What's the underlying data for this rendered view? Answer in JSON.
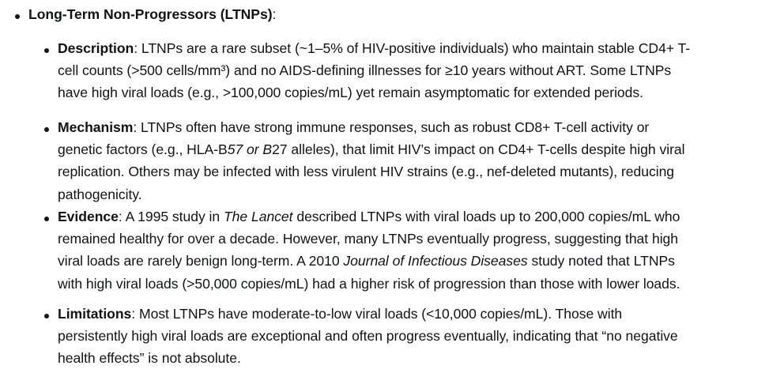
{
  "outer": {
    "title": "Long-Term Non-Progressors (LTNPs)",
    "title_suffix": ":"
  },
  "items": [
    {
      "label": "Description",
      "lines": [
        [
          {
            "t": ": LTNPs are a rare subset (~1–5% of HIV-positive individuals) who maintain stable CD4+ T-"
          }
        ],
        [
          {
            "t": "cell counts (>500 cells/mm³) and no AIDS-defining illnesses for ≥10 years without ART. Some LTNPs"
          }
        ],
        [
          {
            "t": "have high viral loads (e.g., >100,000 copies/mL) yet remain asymptomatic for extended periods."
          }
        ]
      ]
    },
    {
      "label": "Mechanism",
      "lines": [
        [
          {
            "t": ": LTNPs often have strong immune responses, such as robust CD8+ T-cell activity or"
          }
        ],
        [
          {
            "t": "genetic factors (e.g., HLA-B"
          },
          {
            "t": "57 or B",
            "i": true
          },
          {
            "t": "27 alleles), that limit HIV’s impact on CD4+ T-cells despite high viral"
          }
        ],
        [
          {
            "t": "replication. Others may be infected with less virulent HIV strains (e.g., nef-deleted mutants), reducing"
          }
        ],
        [
          {
            "t": "pathogenicity."
          }
        ]
      ]
    },
    {
      "label": "Evidence",
      "lines": [
        [
          {
            "t": ": A 1995 study in "
          },
          {
            "t": "The Lancet",
            "i": true
          },
          {
            "t": " described LTNPs with viral loads up to 200,000 copies/mL who"
          }
        ],
        [
          {
            "t": "remained healthy for over a decade. However, many LTNPs eventually progress, suggesting that high"
          }
        ],
        [
          {
            "t": "viral loads are rarely benign long-term. A 2010 "
          },
          {
            "t": "Journal of Infectious Diseases",
            "i": true
          },
          {
            "t": " study noted that LTNPs"
          }
        ],
        [
          {
            "t": "with high viral loads (>50,000 copies/mL) had a higher risk of progression than those with lower loads."
          }
        ]
      ]
    },
    {
      "label": "Limitations",
      "lines": [
        [
          {
            "t": ": Most LTNPs have moderate-to-low viral loads (<10,000 copies/mL). Those with"
          }
        ],
        [
          {
            "t": "persistently high viral loads are exceptional and often progress eventually, indicating that “no negative"
          }
        ],
        [
          {
            "t": "health effects” is not absolute."
          }
        ]
      ]
    }
  ]
}
